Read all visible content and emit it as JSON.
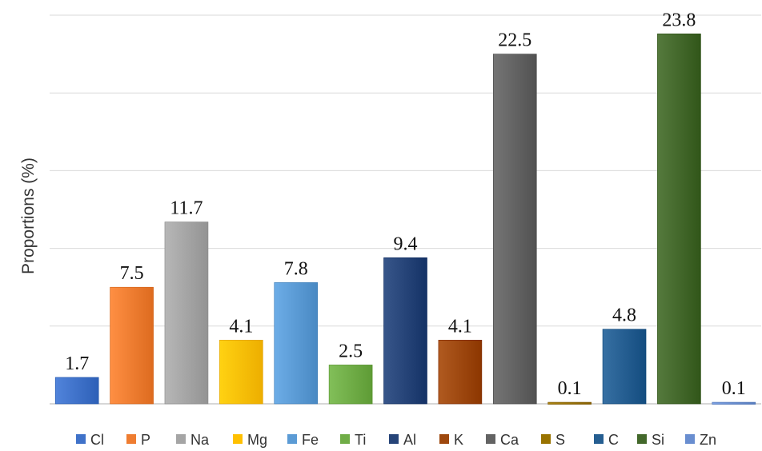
{
  "chart_data": {
    "type": "bar",
    "ylabel": "Proportions (%)",
    "ylim": [
      0,
      25
    ],
    "categories": [
      "Cl",
      "P",
      "Na",
      "Mg",
      "Fe",
      "Ti",
      "Al",
      "K",
      "Ca",
      "S",
      "C",
      "Si",
      "Zn"
    ],
    "values": [
      1.7,
      7.5,
      11.7,
      4.1,
      7.8,
      2.5,
      9.4,
      4.1,
      22.5,
      0.1,
      4.8,
      23.8,
      0.1
    ],
    "value_labels": [
      "1.7",
      "7.5",
      "11.7",
      "4.1",
      "7.8",
      "2.5",
      "9.4",
      "4.1",
      "22.5",
      "0.1",
      "4.8",
      "23.8",
      "0.1"
    ],
    "grid": true,
    "legend_position": "bottom",
    "colors": [
      "#3f72c9",
      "#ef7d31",
      "#a5a5a5",
      "#ffc000",
      "#5b9bd5",
      "#70ad47",
      "#264478",
      "#9e480e",
      "#636363",
      "#997300",
      "#255e91",
      "#43682b",
      "#698ed0"
    ]
  }
}
